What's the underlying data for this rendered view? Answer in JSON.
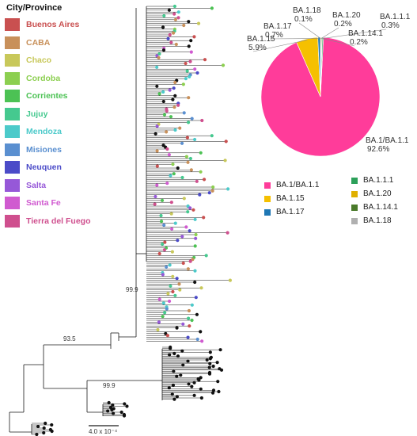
{
  "legend": {
    "title": "City/Province",
    "items": [
      {
        "label": "Buenos Aires",
        "color": "#c95050"
      },
      {
        "label": "CABA",
        "color": "#c8905a"
      },
      {
        "label": "Chaco",
        "color": "#c8c85a"
      },
      {
        "label": "Cordoba",
        "color": "#8ccf50"
      },
      {
        "label": "Corrientes",
        "color": "#4cc254"
      },
      {
        "label": "Jujuy",
        "color": "#45c98f"
      },
      {
        "label": "Mendoza",
        "color": "#4ccaca"
      },
      {
        "label": "Misiones",
        "color": "#5a8fd0"
      },
      {
        "label": "Neuquen",
        "color": "#4b4bc8"
      },
      {
        "label": "Salta",
        "color": "#9658d8"
      },
      {
        "label": "Santa Fe",
        "color": "#d05ad0"
      },
      {
        "label": "Tierra del Fuego",
        "color": "#cf4f8e"
      }
    ]
  },
  "tree": {
    "node_labels": [
      "99.9",
      "93.5",
      "99.9"
    ],
    "scale_label": "4.0 x 10⁻⁴"
  },
  "pie": {
    "slices": [
      {
        "name": "BA.1/BA.1.1",
        "percent": "92.6%",
        "value": 92.6,
        "color": "#ff3c9a"
      },
      {
        "name": "BA.1.15",
        "percent": "5.9%",
        "value": 5.9,
        "color": "#f5c000"
      },
      {
        "name": "BA.1.17",
        "percent": "0.7%",
        "value": 0.7,
        "color": "#1f77b4"
      },
      {
        "name": "BA.1.18",
        "percent": "0.1%",
        "value": 0.1,
        "color": "#b0b0b0"
      },
      {
        "name": "BA.1.20",
        "percent": "0.2%",
        "value": 0.2,
        "color": "#e0b000"
      },
      {
        "name": "BA.1.1.1",
        "percent": "0.3%",
        "value": 0.3,
        "color": "#2ca05a"
      },
      {
        "name": "BA.1.14.1",
        "percent": "0.2%",
        "value": 0.2,
        "color": "#4a7a2a"
      }
    ]
  },
  "lineage_legend": {
    "left": [
      {
        "label": "BA.1/BA.1.1",
        "color": "#ff3c9a"
      },
      {
        "label": "BA.1.15",
        "color": "#f5c000"
      },
      {
        "label": "BA.1.17",
        "color": "#1f77b4"
      }
    ],
    "right": [
      {
        "label": "BA.1.1.1",
        "color": "#2ca05a"
      },
      {
        "label": "BA.1.20",
        "color": "#e0b000"
      },
      {
        "label": "BA.1.14.1",
        "color": "#4a7a2a"
      },
      {
        "label": "BA.1.18",
        "color": "#b0b0b0"
      }
    ]
  }
}
